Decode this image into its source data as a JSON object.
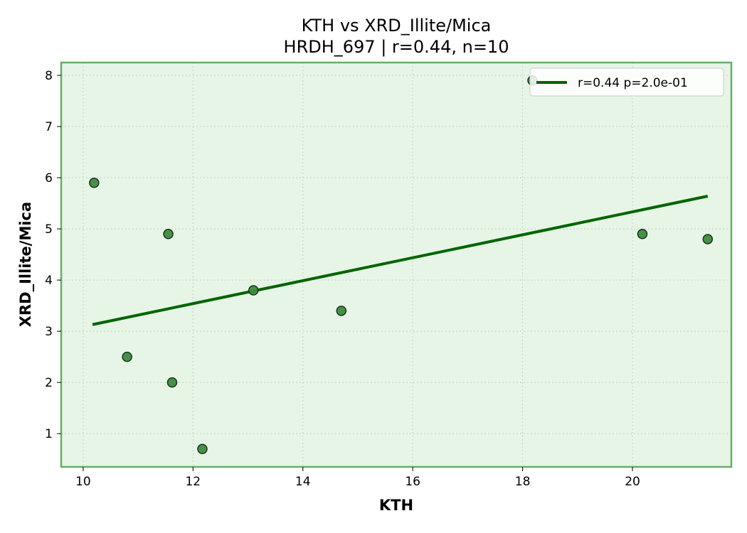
{
  "chart_data": {
    "type": "scatter",
    "title_line1": "KTH vs XRD_Illite/Mica",
    "title_line2": "HRDH_697 | r=0.44, n=10",
    "xlabel": "KTH",
    "ylabel": "XRD_Illite/Mica",
    "xlim": [
      9.6,
      21.8
    ],
    "ylim": [
      0.35,
      8.25
    ],
    "xticks": [
      10,
      12,
      14,
      16,
      18,
      20
    ],
    "yticks": [
      1,
      2,
      3,
      4,
      5,
      6,
      7,
      8
    ],
    "grid": true,
    "legend_position": "top-right",
    "points": [
      {
        "x": 10.2,
        "y": 5.9
      },
      {
        "x": 10.8,
        "y": 2.5
      },
      {
        "x": 11.55,
        "y": 4.9
      },
      {
        "x": 11.62,
        "y": 2.0
      },
      {
        "x": 12.17,
        "y": 0.7
      },
      {
        "x": 13.1,
        "y": 3.8
      },
      {
        "x": 14.7,
        "y": 3.4
      },
      {
        "x": 18.18,
        "y": 7.9
      },
      {
        "x": 20.18,
        "y": 4.9
      },
      {
        "x": 21.37,
        "y": 4.8
      }
    ],
    "fit_line": {
      "label": "r=0.44  p=2.0e-01",
      "x": [
        10.17,
        21.37
      ],
      "y": [
        3.13,
        5.64
      ]
    },
    "colors": {
      "background": "#e6f5e6",
      "frame": "#6aab6a",
      "point_fill": "#3d8b3d",
      "point_edge": "#1a331a",
      "fit_line": "#006400",
      "grid": "#c6d4c6"
    }
  }
}
